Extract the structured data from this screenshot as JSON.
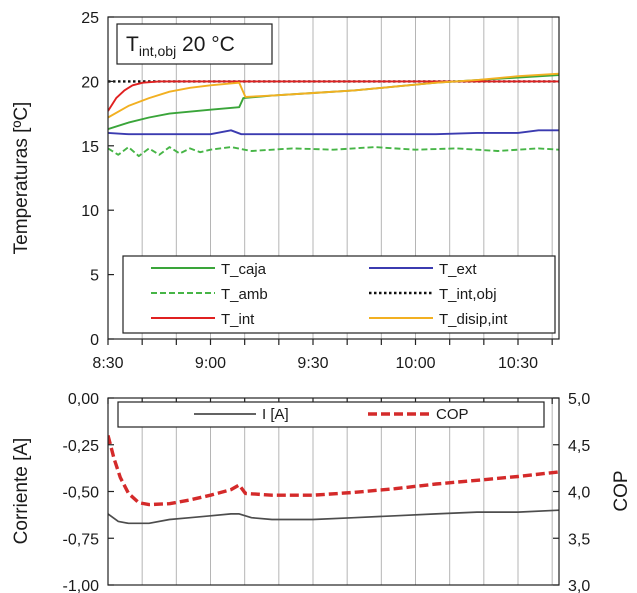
{
  "chart_data": [
    {
      "type": "line",
      "annotation": {
        "base": "T",
        "sub": "int,obj",
        "rest": " 20 °C"
      },
      "ylabel": "Temperaturas [ºC]",
      "xlabel": "",
      "xlim": [
        8.5,
        10.7
      ],
      "ylim": [
        0,
        25
      ],
      "x_ticks": [
        8.5,
        9.0,
        9.5,
        10.0,
        10.5
      ],
      "x_tick_labels": [
        "8:30",
        "9:00",
        "9:30",
        "10:00",
        "10:30"
      ],
      "y_ticks": [
        0,
        5,
        10,
        15,
        20,
        25
      ],
      "y_tick_labels": [
        "0",
        "5",
        "10",
        "15",
        "20",
        "25"
      ],
      "grid": "vertical",
      "legend_position": "bottom",
      "series": [
        {
          "name": "T_caja",
          "color": "#3aa53a",
          "dash": "solid",
          "x": [
            8.5,
            8.6,
            8.7,
            8.8,
            9.0,
            9.14,
            9.16,
            9.3,
            9.5,
            9.7,
            9.9,
            10.1,
            10.3,
            10.5,
            10.7
          ],
          "y": [
            16.3,
            16.8,
            17.2,
            17.5,
            17.8,
            18.0,
            18.7,
            18.9,
            19.1,
            19.3,
            19.6,
            19.9,
            20.1,
            20.3,
            20.5
          ]
        },
        {
          "name": "T_ext",
          "color": "#3b3bb0",
          "dash": "solid",
          "x": [
            8.5,
            8.6,
            8.8,
            9.0,
            9.1,
            9.15,
            9.3,
            9.5,
            9.7,
            9.9,
            10.1,
            10.3,
            10.5,
            10.6,
            10.7
          ],
          "y": [
            16.0,
            15.9,
            15.9,
            15.9,
            16.2,
            15.9,
            15.9,
            15.9,
            15.9,
            15.9,
            15.9,
            16.0,
            16.0,
            16.2,
            16.2
          ]
        },
        {
          "name": "T_amb",
          "color": "#46b546",
          "dash": "dashed",
          "x": [
            8.5,
            8.55,
            8.6,
            8.65,
            8.7,
            8.75,
            8.8,
            8.85,
            8.9,
            8.95,
            9.0,
            9.1,
            9.2,
            9.4,
            9.6,
            9.8,
            10.0,
            10.2,
            10.4,
            10.6,
            10.7
          ],
          "y": [
            14.8,
            14.3,
            14.9,
            14.2,
            14.8,
            14.3,
            14.9,
            14.4,
            14.8,
            14.5,
            14.7,
            14.9,
            14.6,
            14.8,
            14.7,
            14.9,
            14.7,
            14.8,
            14.6,
            14.8,
            14.7
          ]
        },
        {
          "name": "T_int,obj",
          "color": "#111111",
          "dash": "dotted",
          "x": [
            8.5,
            10.7
          ],
          "y": [
            20.0,
            20.0
          ]
        },
        {
          "name": "T_int",
          "color": "#e02020",
          "dash": "solid",
          "x": [
            8.5,
            8.54,
            8.58,
            8.62,
            8.67,
            8.75,
            8.85,
            9.0,
            9.5,
            10.0,
            10.5,
            10.7
          ],
          "y": [
            17.7,
            18.7,
            19.3,
            19.7,
            19.9,
            20.0,
            20.0,
            20.0,
            20.0,
            20.0,
            20.0,
            20.0
          ]
        },
        {
          "name": "T_disip,int",
          "color": "#f2b021",
          "dash": "solid",
          "x": [
            8.5,
            8.6,
            8.7,
            8.8,
            8.9,
            9.0,
            9.14,
            9.17,
            9.3,
            9.5,
            9.7,
            9.9,
            10.1,
            10.3,
            10.5,
            10.7
          ],
          "y": [
            17.2,
            18.1,
            18.7,
            19.2,
            19.5,
            19.7,
            19.9,
            18.8,
            18.9,
            19.1,
            19.3,
            19.6,
            19.9,
            20.1,
            20.4,
            20.6
          ]
        }
      ]
    },
    {
      "type": "line",
      "ylabel": "Corriente [A]",
      "y2label": "COP",
      "xlim": [
        8.5,
        10.7
      ],
      "ylim": [
        -1.0,
        0.0
      ],
      "y2lim": [
        3.0,
        5.0
      ],
      "y_ticks": [
        0,
        -0.25,
        -0.5,
        -0.75,
        -1.0
      ],
      "y_tick_labels": [
        "0,00",
        "-0,25",
        "-0,50",
        "-0,75",
        "-1,00"
      ],
      "y2_ticks": [
        5.0,
        4.5,
        4.0,
        3.5,
        3.0
      ],
      "y2_tick_labels": [
        "5,0",
        "4,5",
        "4,0",
        "3,5",
        "3,0"
      ],
      "grid": "vertical",
      "legend_position": "top",
      "series": [
        {
          "name": "I [A]",
          "axis": "left",
          "color": "#4d4d4d",
          "dash": "solid",
          "x": [
            8.5,
            8.55,
            8.6,
            8.7,
            8.8,
            8.9,
            9.0,
            9.1,
            9.14,
            9.2,
            9.3,
            9.5,
            9.7,
            9.9,
            10.1,
            10.3,
            10.5,
            10.7
          ],
          "y": [
            -0.62,
            -0.66,
            -0.67,
            -0.67,
            -0.65,
            -0.64,
            -0.63,
            -0.62,
            -0.62,
            -0.64,
            -0.65,
            -0.65,
            -0.64,
            -0.63,
            -0.62,
            -0.61,
            -0.61,
            -0.6
          ]
        },
        {
          "name": "COP",
          "axis": "right",
          "color": "#d42a2a",
          "dash": "dashed",
          "x": [
            8.5,
            8.53,
            8.56,
            8.6,
            8.65,
            8.7,
            8.8,
            8.9,
            9.0,
            9.1,
            9.14,
            9.17,
            9.3,
            9.5,
            9.7,
            9.9,
            10.1,
            10.3,
            10.5,
            10.7
          ],
          "y": [
            4.6,
            4.35,
            4.15,
            3.98,
            3.88,
            3.86,
            3.87,
            3.91,
            3.96,
            4.02,
            4.07,
            3.98,
            3.96,
            3.96,
            3.99,
            4.03,
            4.08,
            4.12,
            4.16,
            4.21
          ]
        }
      ]
    }
  ]
}
